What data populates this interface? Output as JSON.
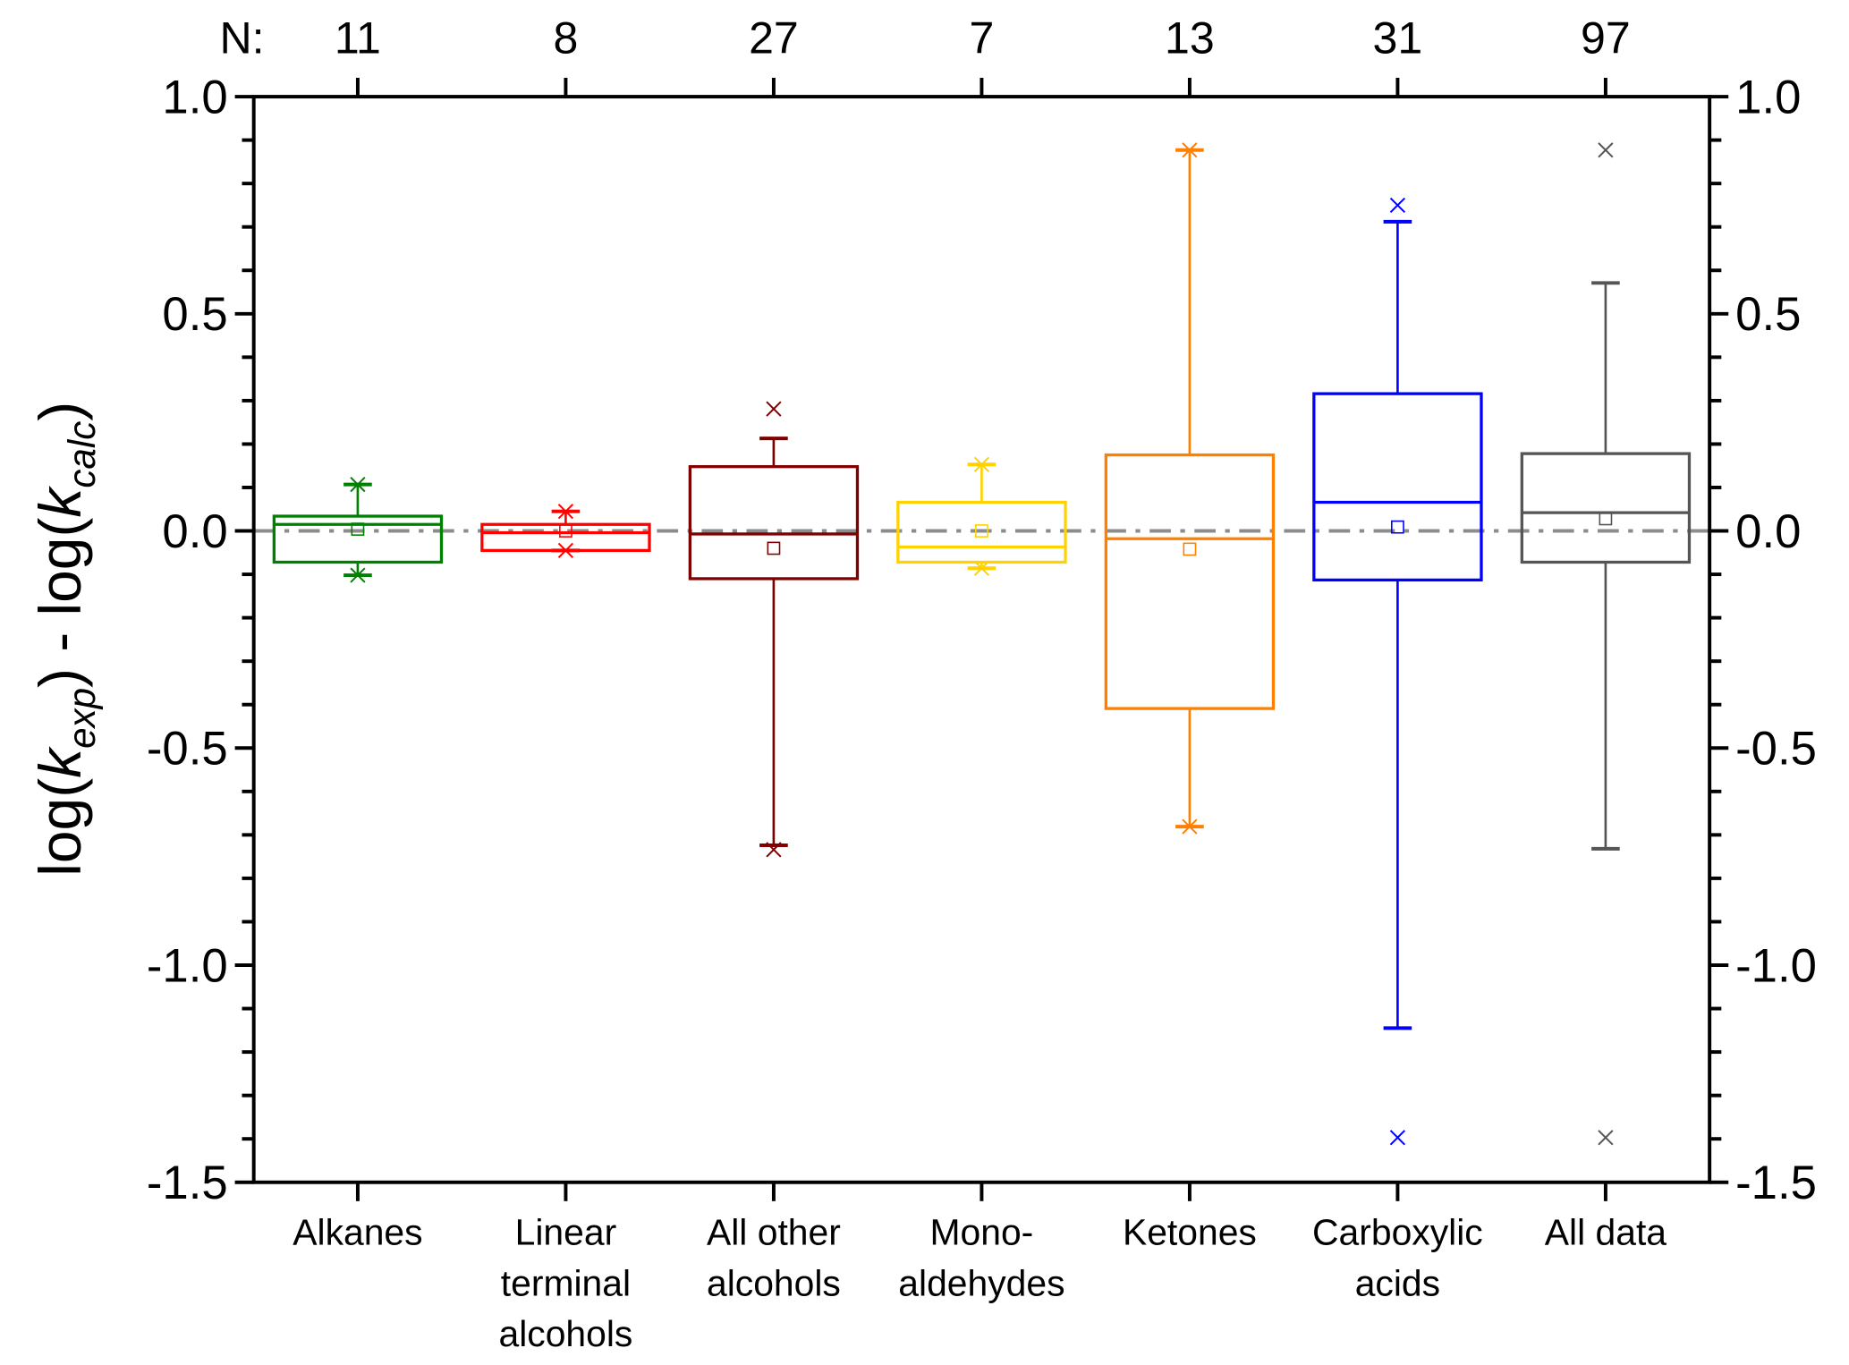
{
  "chart_data": {
    "type": "box",
    "title": "",
    "xlabel": "",
    "ylabel": {
      "prefix1": "log(",
      "k1": "k",
      "sub1": "exp",
      "mid": ") - log(",
      "k2": "k",
      "sub2": "calc",
      "suffix": ")"
    },
    "ylim": [
      -1.5,
      1.0
    ],
    "yticks": [
      "1.0",
      "0.5",
      "0.0",
      "-0.5",
      "-1.0",
      "-1.5"
    ],
    "ytick_values": [
      1.0,
      0.5,
      0.0,
      -0.5,
      -1.0,
      -1.5
    ],
    "n_prefix": "N:",
    "reference_line": 0.0,
    "categories": [
      {
        "label": [
          "Alkanes"
        ],
        "n": "11",
        "color": "#008000",
        "q1": -0.072,
        "median": 0.015,
        "q3": 0.034,
        "mean": 0.004,
        "whisker_low": -0.102,
        "whisker_high": 0.107,
        "min": -0.102,
        "max": 0.107
      },
      {
        "label": [
          "Linear",
          "terminal",
          "alcohols"
        ],
        "n": "8",
        "color": "#ff0000",
        "q1": -0.045,
        "median": -0.004,
        "q3": 0.015,
        "mean": 0.0,
        "whisker_low": -0.045,
        "whisker_high": 0.045,
        "min": -0.045,
        "max": 0.045
      },
      {
        "label": [
          "All other",
          "alcohols"
        ],
        "n": "27",
        "color": "#800000",
        "q1": -0.11,
        "median": -0.007,
        "q3": 0.148,
        "mean": -0.04,
        "whisker_low": -0.724,
        "whisker_high": 0.213,
        "min": -0.734,
        "max": 0.281
      },
      {
        "label": [
          "Mono-",
          "aldehydes"
        ],
        "n": "7",
        "color": "#ffd200",
        "q1": -0.072,
        "median": -0.037,
        "q3": 0.066,
        "mean": 0.0,
        "whisker_low": -0.086,
        "whisker_high": 0.153,
        "min": -0.086,
        "max": 0.153
      },
      {
        "label": [
          "Ketones"
        ],
        "n": "13",
        "color": "#ff8000",
        "q1": -0.409,
        "median": -0.018,
        "q3": 0.175,
        "mean": -0.042,
        "whisker_low": -0.681,
        "whisker_high": 0.877,
        "min": -0.681,
        "max": 0.877
      },
      {
        "label": [
          "Carboxylic",
          "acids"
        ],
        "n": "31",
        "color": "#0000ff",
        "q1": -0.113,
        "median": 0.066,
        "q3": 0.316,
        "mean": 0.009,
        "whisker_low": -1.145,
        "whisker_high": 0.712,
        "min": -1.397,
        "max": 0.75
      },
      {
        "label": [
          "All data"
        ],
        "n": "97",
        "color": "#555555",
        "q1": -0.072,
        "median": 0.042,
        "q3": 0.178,
        "mean": 0.028,
        "whisker_low": -0.732,
        "whisker_high": 0.571,
        "min": -1.397,
        "max": 0.877
      }
    ]
  }
}
